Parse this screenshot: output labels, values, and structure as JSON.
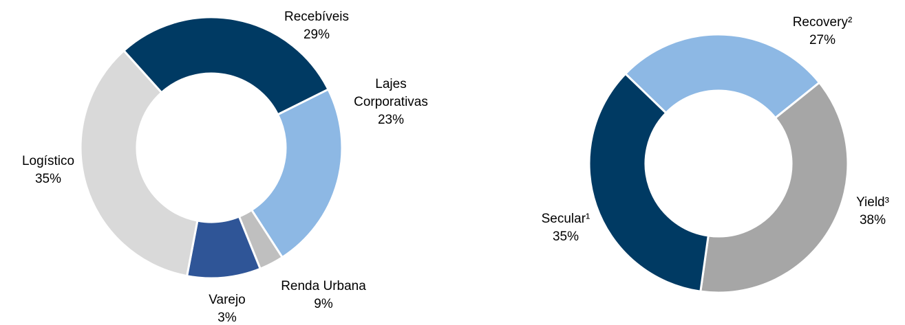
{
  "chart_data": [
    {
      "type": "donut",
      "categories": [
        "Recebíveis",
        "Lajes Corporativas",
        "Varejo",
        "Renda Urbana",
        "Logístico"
      ],
      "values": [
        29,
        23,
        3,
        9,
        35
      ],
      "value_labels": [
        "29%",
        "23%",
        "3%",
        "9%",
        "35%"
      ],
      "colors": [
        "#003a63",
        "#8db8e4",
        "#bfbfbf",
        "#2f5597",
        "#d9d9d9"
      ]
    },
    {
      "type": "donut",
      "categories": [
        "Recovery²",
        "Yield³",
        "Secular¹"
      ],
      "values": [
        27,
        38,
        35
      ],
      "value_labels": [
        "27%",
        "38%",
        "35%"
      ],
      "colors": [
        "#8db8e4",
        "#a6a6a6",
        "#003a63"
      ]
    }
  ]
}
